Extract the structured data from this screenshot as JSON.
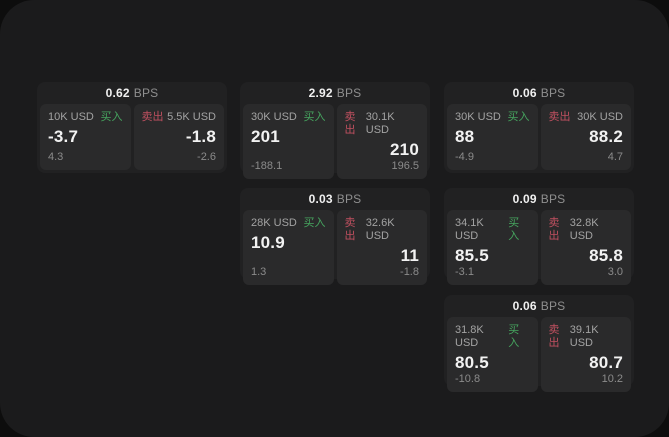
{
  "labels": {
    "buy": "买入",
    "sell": "卖出",
    "bps_unit": "BPS"
  },
  "colors": {
    "buy_green": "#46a55f",
    "sell_red": "#c05060",
    "window_bg": "#1b1b1c",
    "card_bg": "#212122",
    "panel_bg": "#2a2a2b"
  },
  "cards": [
    {
      "bps": "0.62",
      "col": 0,
      "row": 0,
      "buy": {
        "size": "10K USD",
        "value": "-3.7",
        "change": "4.3"
      },
      "sell": {
        "size": "5.5K USD",
        "value": "-1.8",
        "change": "-2.6"
      }
    },
    {
      "bps": "2.92",
      "col": 1,
      "row": 0,
      "buy": {
        "size": "30K USD",
        "value": "201",
        "change": "-188.1"
      },
      "sell": {
        "size": "30.1K USD",
        "value": "210",
        "change": "196.5"
      }
    },
    {
      "bps": "0.06",
      "col": 2,
      "row": 0,
      "buy": {
        "size": "30K USD",
        "value": "88",
        "change": "-4.9"
      },
      "sell": {
        "size": "30K USD",
        "value": "88.2",
        "change": "4.7"
      }
    },
    {
      "bps": "0.03",
      "col": 1,
      "row": 1,
      "buy": {
        "size": "28K USD",
        "value": "10.9",
        "change": "1.3"
      },
      "sell": {
        "size": "32.6K USD",
        "value": "11",
        "change": "-1.8"
      }
    },
    {
      "bps": "0.09",
      "col": 2,
      "row": 1,
      "buy": {
        "size": "34.1K USD",
        "value": "85.5",
        "change": "-3.1"
      },
      "sell": {
        "size": "32.8K USD",
        "value": "85.8",
        "change": "3.0"
      }
    },
    {
      "bps": "0.06",
      "col": 2,
      "row": 2,
      "buy": {
        "size": "31.8K USD",
        "value": "80.5",
        "change": "-10.8"
      },
      "sell": {
        "size": "39.1K USD",
        "value": "80.7",
        "change": "10.2"
      }
    }
  ]
}
